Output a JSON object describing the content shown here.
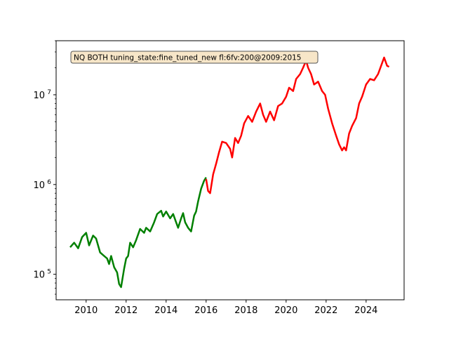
{
  "chart_data": {
    "type": "line",
    "title": "",
    "xlabel": "",
    "ylabel": "",
    "annotation": "NQ BOTH tuning_state:fine_tuned_new fl:6fv:200@2009:2015",
    "xlim": [
      2008.5,
      2025.9
    ],
    "ylim": [
      52000,
      40000000
    ],
    "yscale": "log",
    "grid": false,
    "x_ticks": [
      2010,
      2012,
      2014,
      2016,
      2018,
      2020,
      2022,
      2024
    ],
    "x_tick_labels": [
      "2010",
      "2012",
      "2014",
      "2016",
      "2018",
      "2020",
      "2022",
      "2024"
    ],
    "y_ticks": [
      {
        "value": 100000,
        "base": "10",
        "exp": "5"
      },
      {
        "value": 1000000,
        "base": "10",
        "exp": "6"
      },
      {
        "value": 10000000,
        "base": "10",
        "exp": "7"
      }
    ],
    "series": [
      {
        "color": "#008000",
        "points": [
          [
            2009.2,
            200000
          ],
          [
            2009.4,
            225000
          ],
          [
            2009.6,
            195000
          ],
          [
            2009.8,
            260000
          ],
          [
            2010.0,
            290000
          ],
          [
            2010.15,
            210000
          ],
          [
            2010.35,
            270000
          ],
          [
            2010.5,
            250000
          ],
          [
            2010.7,
            175000
          ],
          [
            2010.9,
            160000
          ],
          [
            2011.05,
            150000
          ],
          [
            2011.15,
            130000
          ],
          [
            2011.25,
            160000
          ],
          [
            2011.4,
            120000
          ],
          [
            2011.55,
            105000
          ],
          [
            2011.65,
            78000
          ],
          [
            2011.75,
            72000
          ],
          [
            2011.9,
            115000
          ],
          [
            2012.0,
            150000
          ],
          [
            2012.1,
            160000
          ],
          [
            2012.2,
            225000
          ],
          [
            2012.35,
            200000
          ],
          [
            2012.5,
            240000
          ],
          [
            2012.7,
            320000
          ],
          [
            2012.9,
            290000
          ],
          [
            2013.0,
            330000
          ],
          [
            2013.2,
            300000
          ],
          [
            2013.4,
            380000
          ],
          [
            2013.55,
            470000
          ],
          [
            2013.75,
            510000
          ],
          [
            2013.85,
            440000
          ],
          [
            2014.0,
            500000
          ],
          [
            2014.2,
            420000
          ],
          [
            2014.35,
            470000
          ],
          [
            2014.5,
            380000
          ],
          [
            2014.6,
            330000
          ],
          [
            2014.75,
            420000
          ],
          [
            2014.85,
            480000
          ],
          [
            2014.95,
            380000
          ],
          [
            2015.1,
            330000
          ],
          [
            2015.25,
            300000
          ],
          [
            2015.4,
            450000
          ],
          [
            2015.5,
            500000
          ],
          [
            2015.6,
            650000
          ],
          [
            2015.75,
            900000
          ],
          [
            2015.9,
            1100000
          ],
          [
            2016.0,
            1200000
          ]
        ]
      },
      {
        "color": "#ff0000",
        "points": [
          [
            2016.0,
            1150000
          ],
          [
            2016.1,
            850000
          ],
          [
            2016.2,
            800000
          ],
          [
            2016.35,
            1300000
          ],
          [
            2016.5,
            1700000
          ],
          [
            2016.65,
            2300000
          ],
          [
            2016.8,
            3000000
          ],
          [
            2017.0,
            2900000
          ],
          [
            2017.2,
            2500000
          ],
          [
            2017.3,
            2000000
          ],
          [
            2017.45,
            3300000
          ],
          [
            2017.6,
            2900000
          ],
          [
            2017.75,
            3500000
          ],
          [
            2017.9,
            4800000
          ],
          [
            2018.1,
            5800000
          ],
          [
            2018.3,
            5000000
          ],
          [
            2018.5,
            6500000
          ],
          [
            2018.7,
            8000000
          ],
          [
            2018.85,
            6000000
          ],
          [
            2019.0,
            5000000
          ],
          [
            2019.2,
            6500000
          ],
          [
            2019.4,
            5200000
          ],
          [
            2019.6,
            7500000
          ],
          [
            2019.8,
            8000000
          ],
          [
            2020.0,
            9500000
          ],
          [
            2020.15,
            12000000
          ],
          [
            2020.35,
            11000000
          ],
          [
            2020.5,
            15000000
          ],
          [
            2020.7,
            17000000
          ],
          [
            2020.85,
            20000000
          ],
          [
            2021.0,
            24000000
          ],
          [
            2021.1,
            20000000
          ],
          [
            2021.25,
            17000000
          ],
          [
            2021.4,
            13000000
          ],
          [
            2021.6,
            14000000
          ],
          [
            2021.8,
            11000000
          ],
          [
            2021.95,
            10000000
          ],
          [
            2022.1,
            7000000
          ],
          [
            2022.3,
            4800000
          ],
          [
            2022.5,
            3500000
          ],
          [
            2022.65,
            2800000
          ],
          [
            2022.8,
            2400000
          ],
          [
            2022.9,
            2600000
          ],
          [
            2023.0,
            2400000
          ],
          [
            2023.15,
            3700000
          ],
          [
            2023.3,
            4500000
          ],
          [
            2023.5,
            5500000
          ],
          [
            2023.65,
            8000000
          ],
          [
            2023.8,
            9500000
          ],
          [
            2024.0,
            13000000
          ],
          [
            2024.2,
            15000000
          ],
          [
            2024.4,
            14500000
          ],
          [
            2024.6,
            17000000
          ],
          [
            2024.75,
            21000000
          ],
          [
            2024.9,
            26000000
          ],
          [
            2025.05,
            21000000
          ],
          [
            2025.15,
            20500000
          ]
        ]
      }
    ]
  }
}
